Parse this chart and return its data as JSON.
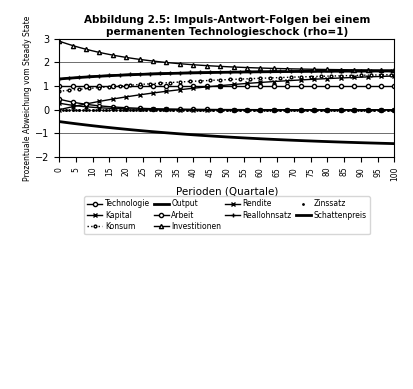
{
  "title": "Abbildung 2.5: Impuls-Antwort-Folgen bei einem\npermanenten Technologieschock (rho=1)",
  "xlabel": "Perioden (Quartale)",
  "ylabel": "Prozentuale Abweichung vom Steady State",
  "xlim": [
    0,
    100
  ],
  "ylim": [
    -2,
    3
  ],
  "yticks": [
    -2,
    -1,
    0,
    1,
    2,
    3
  ],
  "xticks": [
    0,
    5,
    10,
    15,
    20,
    25,
    30,
    35,
    40,
    45,
    50,
    55,
    60,
    65,
    70,
    75,
    80,
    85,
    90,
    95,
    100
  ],
  "background_color": "#ffffff",
  "curves": [
    {
      "name": "Technologie",
      "start": 1.0,
      "end": 1.0,
      "tau": 999,
      "marker": "o",
      "ls": "-",
      "lw": 1.0,
      "ms": 3,
      "me": 4
    },
    {
      "name": "Kapital",
      "start": 0.0,
      "end": 1.65,
      "tau": 50,
      "marker": "x",
      "ls": "-",
      "lw": 1.0,
      "ms": 3,
      "me": 4
    },
    {
      "name": "Konsum",
      "start": 0.78,
      "end": 1.65,
      "tau": 60,
      "marker": "o",
      "ls": ":",
      "lw": 1.0,
      "ms": 2,
      "me": 3
    },
    {
      "name": "Output",
      "start": 1.3,
      "end": 1.65,
      "tau": 30,
      "marker": "",
      "ls": "-",
      "lw": 2.0,
      "ms": 0,
      "me": 1
    },
    {
      "name": "Arbeit",
      "start": 0.45,
      "end": 0.0,
      "tau": 12,
      "marker": "o",
      "ls": "-",
      "lw": 1.0,
      "ms": 3,
      "me": 4
    },
    {
      "name": "Investitionen",
      "start": 2.9,
      "end": 1.65,
      "tau": 25,
      "marker": "^",
      "ls": "-",
      "lw": 1.0,
      "ms": 3,
      "me": 4
    },
    {
      "name": "Rendite",
      "start": 0.28,
      "end": 0.0,
      "tau": 10,
      "marker": "x",
      "ls": "-",
      "lw": 1.0,
      "ms": 3,
      "me": 4
    },
    {
      "name": "Reallohnsatz",
      "start": 1.3,
      "end": 1.65,
      "tau": 25,
      "marker": "+",
      "ls": "-",
      "lw": 1.0,
      "ms": 3,
      "me": 3
    },
    {
      "name": "Zinssatz",
      "start": 0.0,
      "end": 0.0,
      "tau": 999,
      "marker": ".",
      "ls": "",
      "lw": 1.0,
      "ms": 2,
      "me": 2
    },
    {
      "name": "Schattenpreis",
      "start": -0.5,
      "end": -1.65,
      "tau": 60,
      "marker": "",
      "ls": "-",
      "lw": 2.0,
      "ms": 0,
      "me": 1
    }
  ],
  "legend_order": [
    "Technologie",
    "Kapital",
    "Konsum",
    "Output",
    "Arbeit",
    "Investitionen",
    "Rendite",
    "Reallohnsatz",
    "Zinssatz",
    "Schattenpreis"
  ]
}
